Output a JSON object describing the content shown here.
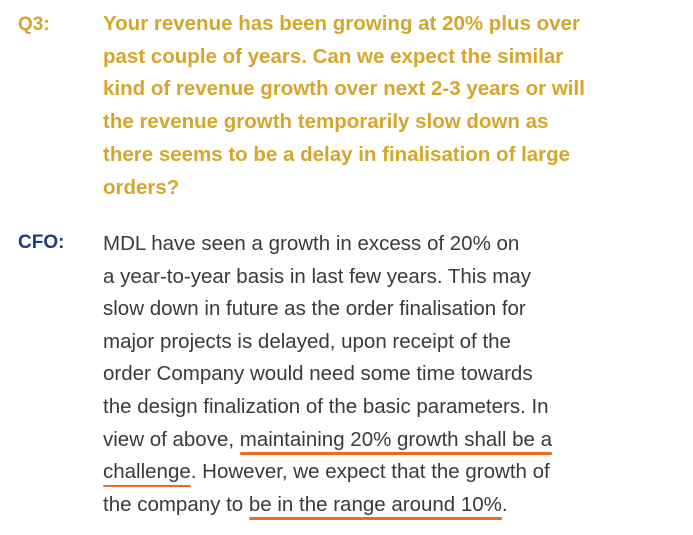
{
  "question": {
    "label": "Q3:",
    "lines": [
      "Your revenue has been growing at 20% plus over",
      "past couple of years. Can we expect the similar",
      "kind of revenue growth over next 2-3 years or will",
      "the revenue growth temporarily slow down as",
      "there seems to be a delay in finalisation of large",
      "orders?"
    ]
  },
  "answer": {
    "label": "CFO:",
    "lines": [
      "MDL have seen a growth in excess of 20% on",
      "a year-to-year basis in last few years. This may",
      "slow down in future as the order finalisation for",
      "major projects is delayed, upon receipt of the",
      "order Company would need some time towards",
      "the design finalization of the basic parameters. In"
    ],
    "line7_plain": "view of above, ",
    "line7_underlined": "maintaining 20% growth shall be a",
    "line8_underlined": "challenge",
    "line8_plain": ". However, we expect that the growth of",
    "line9_plain": "the company to ",
    "line9_underlined": "be in the range around 10%",
    "line9_end": "."
  },
  "colors": {
    "question_text": "#d4a72c",
    "answer_label": "#1e3c78",
    "answer_text": "#3a3a3a",
    "underline": "#ee6a1f"
  }
}
